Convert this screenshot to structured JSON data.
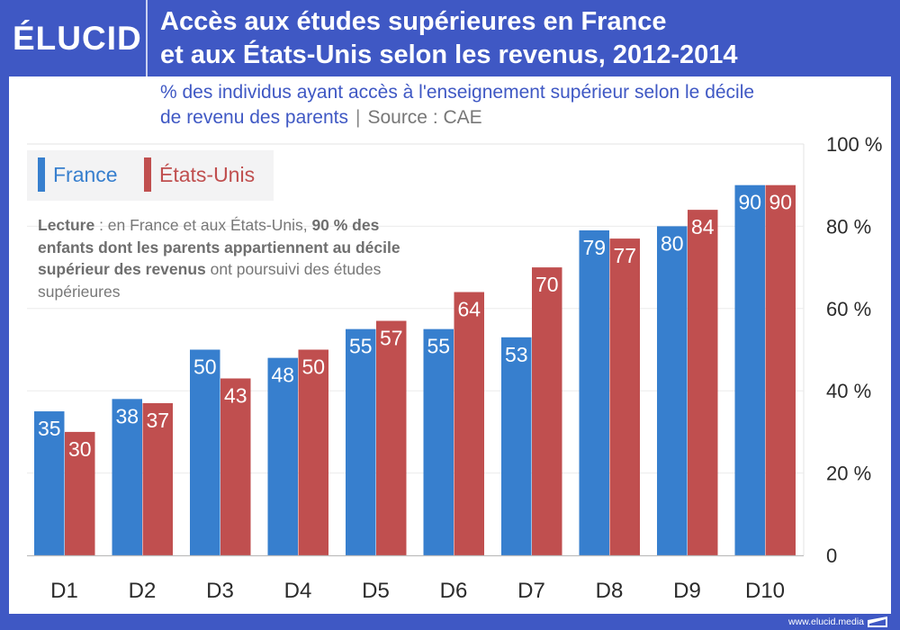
{
  "header": {
    "logo": "ÉLUCID",
    "title_line1": "Accès aux études supérieures en France",
    "title_line2": "et aux États-Unis selon les revenus, 2012-2014"
  },
  "subtitle": {
    "line1": "% des individus ayant accès à l'enseignement supérieur selon le décile",
    "line2": "de revenu des parents",
    "separator": "|",
    "source": "Source : CAE"
  },
  "note": {
    "lead": "Lecture",
    "part1": " : en France et aux États-Unis, ",
    "bold1": "90 % des enfants dont les parents appartiennent au décile supérieur des revenus",
    "part2": " ont poursuivi des études supérieures"
  },
  "footer": {
    "url": "www.elucid.media"
  },
  "colors": {
    "brand": "#3f58c4",
    "france": "#377fce",
    "usa": "#c04f4f"
  },
  "chart_data": {
    "type": "bar",
    "title": "Accès aux études supérieures en France et aux États-Unis selon les revenus, 2012-2014",
    "subtitle": "% des individus ayant accès à l'enseignement supérieur selon le décile de revenu des parents",
    "xlabel": "",
    "ylabel": "",
    "categories": [
      "D1",
      "D2",
      "D3",
      "D4",
      "D5",
      "D6",
      "D7",
      "D8",
      "D9",
      "D10"
    ],
    "series": [
      {
        "name": "France",
        "color": "#377fce",
        "values": [
          35,
          38,
          50,
          48,
          55,
          55,
          53,
          79,
          80,
          90
        ]
      },
      {
        "name": "États-Unis",
        "color": "#c04f4f",
        "values": [
          30,
          37,
          43,
          50,
          57,
          64,
          70,
          77,
          84,
          90
        ]
      }
    ],
    "ylim": [
      0,
      100
    ],
    "yticks": [
      0,
      20,
      40,
      60,
      80,
      100
    ],
    "ytick_labels": [
      "0",
      "20 %",
      "40 %",
      "60 %",
      "80 %",
      "100 %"
    ],
    "y_axis_side": "right",
    "grid": true,
    "legend_position": "top-left",
    "data_labels": true
  }
}
